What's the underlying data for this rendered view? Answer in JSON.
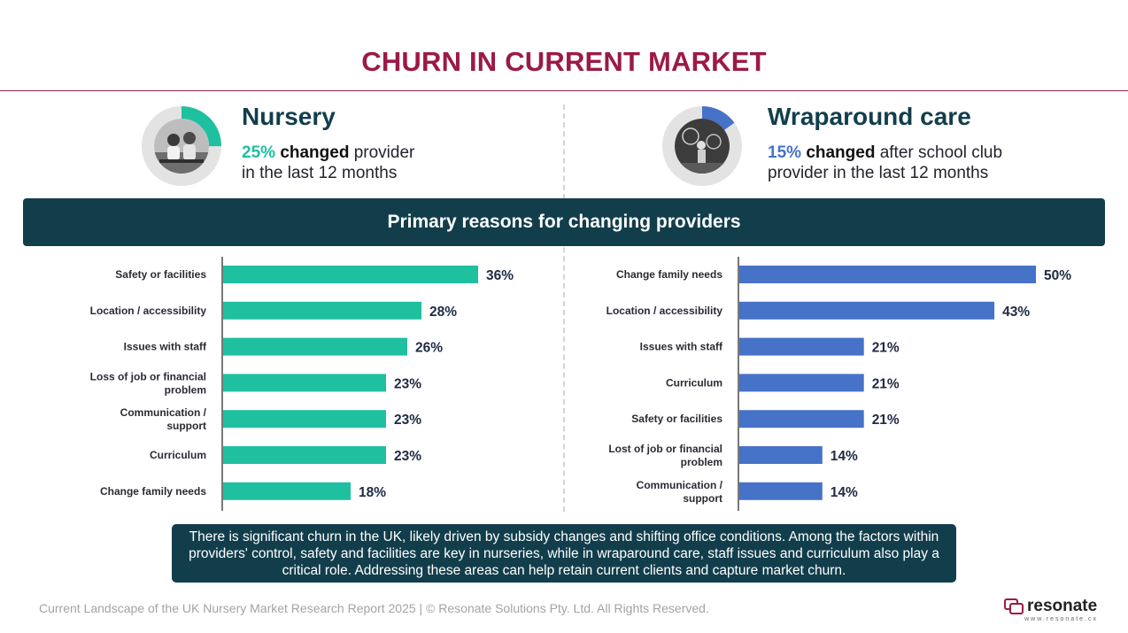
{
  "title": "CHURN IN CURRENT MARKET",
  "nursery": {
    "heading": "Nursery",
    "pct": "25%",
    "changed": "changed",
    "rest_line1": " provider",
    "line2": "in the last 12 months",
    "donut_fraction": 0.25,
    "color": "#1fc0a0"
  },
  "wraparound": {
    "heading": "Wraparound care",
    "pct": "15%",
    "changed": "changed",
    "rest_line1": " after school club",
    "line2": "provider in the last 12 months",
    "donut_fraction": 0.15,
    "color": "#4672c8"
  },
  "banner": "Primary reasons for changing providers",
  "chart_data": [
    {
      "type": "bar",
      "orientation": "horizontal",
      "color": "#1fc0a0",
      "categories": [
        "Safety or facilities",
        "Location / accessibility",
        "Issues with staff",
        "Loss of job or financial problem",
        "Communication / support",
        "Curriculum",
        "Change family needs"
      ],
      "category_lines": [
        [
          "Safety or facilities"
        ],
        [
          "Location / accessibility"
        ],
        [
          "Issues with staff"
        ],
        [
          "Loss of job or financial",
          "problem"
        ],
        [
          "Communication /",
          "support"
        ],
        [
          "Curriculum"
        ],
        [
          "Change family needs"
        ]
      ],
      "values": [
        36,
        28,
        26,
        23,
        23,
        23,
        18
      ],
      "value_labels": [
        "36%",
        "28%",
        "26%",
        "23%",
        "23%",
        "23%",
        "18%"
      ]
    },
    {
      "type": "bar",
      "orientation": "horizontal",
      "color": "#4672c8",
      "categories": [
        "Change family needs",
        "Location / accessibility",
        "Issues with staff",
        "Curriculum",
        "Safety or facilities",
        "Lost of job or financial problem",
        "Communication / support"
      ],
      "category_lines": [
        [
          "Change family needs"
        ],
        [
          "Location / accessibility"
        ],
        [
          "Issues with staff"
        ],
        [
          "Curriculum"
        ],
        [
          "Safety or facilities"
        ],
        [
          "Lost of job or financial",
          "problem"
        ],
        [
          "Communication /",
          "support"
        ]
      ],
      "values": [
        50,
        43,
        21,
        21,
        21,
        14,
        14
      ],
      "value_labels": [
        "50%",
        "43%",
        "21%",
        "21%",
        "21%",
        "14%",
        "14%"
      ]
    }
  ],
  "note": "There is significant churn in the UK, likely driven by subsidy changes and shifting office conditions. Among the factors within providers' control, safety and facilities are key in nurseries, while in wraparound care, staff issues and curriculum also play a critical role. Addressing these areas can help retain current clients and capture market churn.",
  "footer": "Current Landscape of the UK Nursery Market Research Report 2025 | © Resonate Solutions Pty. Ltd. All Rights Reserved.",
  "logo": {
    "word": "resonate",
    "url": "www.resonate.cx"
  }
}
